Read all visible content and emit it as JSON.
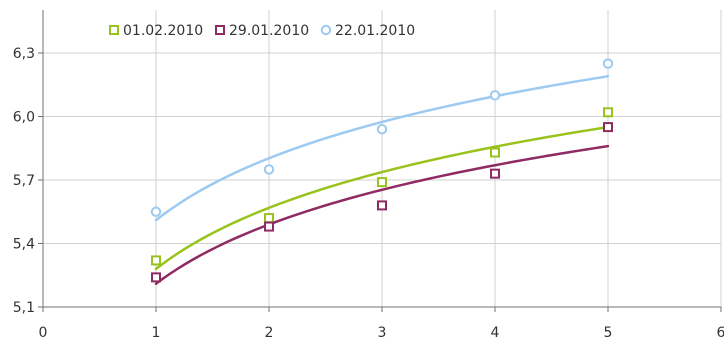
{
  "chart_data": {
    "type": "scatter",
    "x_ticks": [
      "0",
      "1",
      "2",
      "3",
      "4",
      "5",
      "6"
    ],
    "y_ticks": [
      "5,1",
      "5,4",
      "5,7",
      "6,0",
      "6,3"
    ],
    "xlim": [
      0,
      6
    ],
    "ylim": [
      5.1,
      6.45
    ],
    "grid": "vertical and horizontal",
    "legend_position": "top-left",
    "trendline": "logarithmic",
    "series": [
      {
        "name": "01.02.2010",
        "color": "#99c31c",
        "marker": "square",
        "x": [
          1,
          2,
          3,
          4,
          5
        ],
        "values": [
          5.32,
          5.52,
          5.69,
          5.83,
          6.02
        ],
        "trend_values": [
          5.28,
          5.57,
          5.74,
          5.86,
          5.95
        ]
      },
      {
        "name": "29.01.2010",
        "color": "#8f2a62",
        "marker": "square",
        "x": [
          1,
          2,
          3,
          4,
          5
        ],
        "values": [
          5.24,
          5.48,
          5.58,
          5.73,
          5.95
        ],
        "trend_values": [
          5.21,
          5.49,
          5.65,
          5.77,
          5.86
        ]
      },
      {
        "name": "22.01.2010",
        "color": "#9ccaf0",
        "marker": "circle",
        "x": [
          1,
          2,
          3,
          4,
          5
        ],
        "values": [
          5.55,
          5.75,
          5.94,
          6.1,
          6.25
        ],
        "trend_values": [
          5.51,
          5.8,
          5.97,
          6.1,
          6.19
        ]
      }
    ]
  }
}
